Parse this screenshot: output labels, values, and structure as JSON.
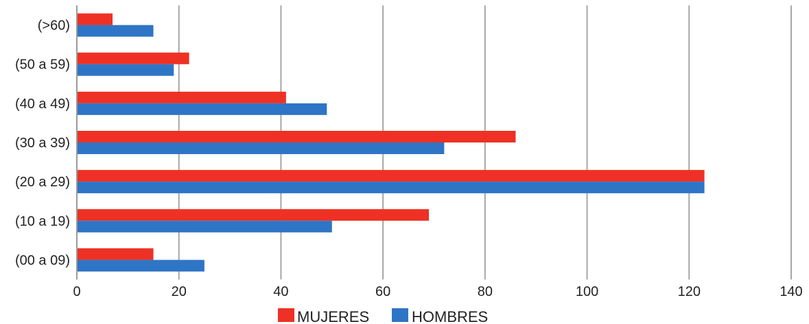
{
  "chart_data": {
    "type": "bar",
    "orientation": "horizontal",
    "title": "",
    "xlabel": "",
    "ylabel": "",
    "categories": [
      "(00 a 09)",
      "(10 a 19)",
      "(20 a 29)",
      "(30 a 39)",
      "(40 a 49)",
      "(50 a 59)",
      "(>60)"
    ],
    "series": [
      {
        "name": "MUJERES",
        "color": "#ee3124",
        "values": [
          15,
          69,
          123,
          86,
          41,
          22,
          7
        ]
      },
      {
        "name": "HOMBRES",
        "color": "#2e75c6",
        "values": [
          25,
          50,
          123,
          72,
          49,
          19,
          15
        ]
      }
    ],
    "xlim": [
      0,
      140
    ],
    "xticks": [
      "0",
      "20",
      "40",
      "60",
      "80",
      "100",
      "120",
      "140"
    ],
    "grid": "vertical",
    "legend_position": "bottom"
  }
}
